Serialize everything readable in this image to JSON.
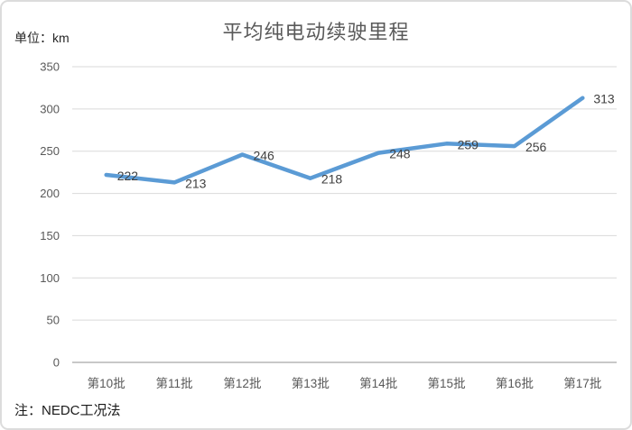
{
  "header": {
    "title": "平均纯电动续驶里程",
    "unit_label": "单位：km"
  },
  "footer": {
    "note": "注：NEDC工况法"
  },
  "chart_data": {
    "type": "line",
    "title": "平均纯电动续驶里程",
    "categories": [
      "第10批",
      "第11批",
      "第12批",
      "第13批",
      "第14批",
      "第15批",
      "第16批",
      "第17批"
    ],
    "values": [
      222,
      213,
      246,
      218,
      248,
      259,
      256,
      313
    ],
    "data_labels": [
      "222",
      "213",
      "246",
      "218",
      "248",
      "259",
      "256",
      "313"
    ],
    "ytick_labels": [
      "0",
      "50",
      "100",
      "150",
      "200",
      "250",
      "300",
      "350"
    ],
    "xlabel": "",
    "ylabel": "单位：km",
    "ylim": [
      0,
      350
    ],
    "ytick_step": 50,
    "grid": true,
    "legend": false,
    "line_color": "#5B9BD5",
    "line_width": 4.5,
    "label_color": "#404040",
    "axis_text_color": "#595959",
    "gridline_color": "#D9D9D9",
    "axisline_color": "#C8C8C8"
  }
}
